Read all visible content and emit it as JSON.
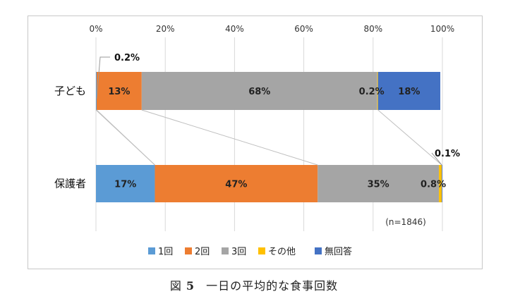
{
  "chart_data": {
    "type": "bar",
    "orientation": "horizontal",
    "stacked": "percent",
    "categories": [
      "子ども",
      "保護者"
    ],
    "series": [
      {
        "name": "1回",
        "color": "#5b9bd5",
        "values": [
          0.2,
          17
        ]
      },
      {
        "name": "2回",
        "color": "#ed7d31",
        "values": [
          13,
          47
        ]
      },
      {
        "name": "3回",
        "color": "#a5a5a5",
        "values": [
          68,
          35
        ]
      },
      {
        "name": "その他",
        "color": "#ffc000",
        "values": [
          0.2,
          0.8
        ]
      },
      {
        "name": "無回答",
        "color": "#4472c4",
        "values": [
          18,
          0.1
        ]
      }
    ],
    "segment_labels": [
      [
        "",
        "13%",
        "68%",
        "0.2%",
        "18%"
      ],
      [
        "17%",
        "47%",
        "35%",
        "0.8%",
        ""
      ]
    ],
    "callouts": [
      "0.2%",
      "0.1%"
    ],
    "xticks": [
      "0%",
      "20%",
      "40%",
      "60%",
      "80%",
      "100%"
    ],
    "xlim": [
      0,
      100
    ],
    "grid": true,
    "legend_position": "bottom",
    "note": "(n=1846)"
  },
  "caption": {
    "prefix": "図",
    "number": "5",
    "title": "一日の平均的な食事回数"
  }
}
